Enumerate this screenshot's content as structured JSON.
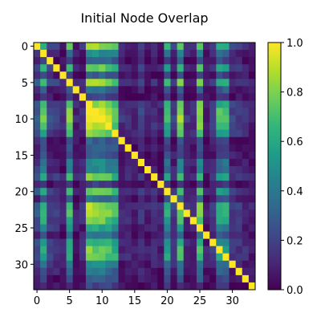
{
  "chart_data": {
    "type": "heatmap",
    "title": "Initial Node Overlap",
    "n": 34,
    "x_ticks": [
      0,
      5,
      10,
      15,
      20,
      25,
      30
    ],
    "y_ticks": [
      0,
      5,
      10,
      15,
      20,
      25,
      30
    ],
    "colormap": "viridis",
    "colorbar": {
      "range": [
        0.0,
        1.0
      ],
      "ticks": [
        "0.0",
        "0.2",
        "0.4",
        "0.6",
        "0.8",
        "1.0"
      ]
    },
    "colormap_stops": [
      "#440154",
      "#482878",
      "#3e4989",
      "#31688e",
      "#26828e",
      "#1f9e89",
      "#35b779",
      "#6ece58",
      "#b5de2b",
      "#fde725"
    ],
    "column_base": [
      0.3,
      0.75,
      0.25,
      0.2,
      0.1,
      0.8,
      0.1,
      0.15,
      1.0,
      0.95,
      0.95,
      0.9,
      0.8,
      0.15,
      0.15,
      0.1,
      0.2,
      0.1,
      0.15,
      0.1,
      0.7,
      0.2,
      0.85,
      0.15,
      0.15,
      0.85,
      0.1,
      0.2,
      0.7,
      0.7,
      0.2,
      0.2,
      0.15,
      0.1
    ],
    "row_factor": [
      0.9,
      0.5,
      0.3,
      0.8,
      0.3,
      0.9,
      0.4,
      0.2,
      0.9,
      1.0,
      1.0,
      0.9,
      0.8,
      0.3,
      0.3,
      0.3,
      0.5,
      0.5,
      0.8,
      0.2,
      0.8,
      0.4,
      0.9,
      0.9,
      0.8,
      0.6,
      0.4,
      0.7,
      0.8,
      0.8,
      0.5,
      0.4,
      0.3,
      0.2
    ]
  }
}
